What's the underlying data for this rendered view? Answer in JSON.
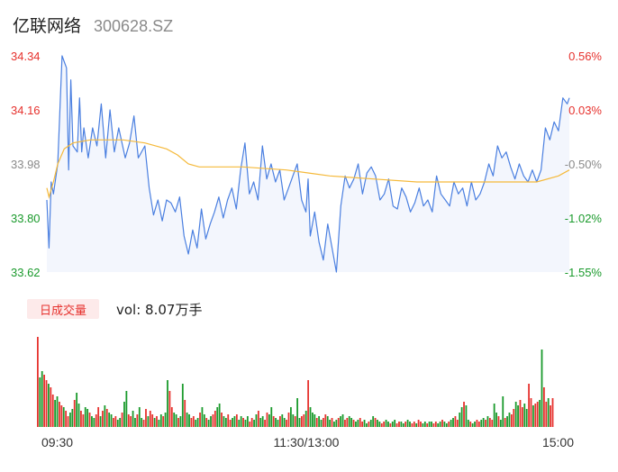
{
  "header": {
    "name": "亿联网络",
    "code": "300628.SZ"
  },
  "volume_panel": {
    "badge": "日成交量",
    "vol_label": "vol: 8.07万手"
  },
  "colors": {
    "up": "#e6322e",
    "down": "#1a9a2c",
    "neutral": "#8a8a8a",
    "price_line": "#4a7fe0",
    "price_fill": "#f3f6fd",
    "avg_line": "#f5b93a"
  },
  "chart_data": [
    {
      "type": "line",
      "y_ticks_left": [
        "34.34",
        "34.16",
        "33.98",
        "33.80",
        "33.62"
      ],
      "y_ticks_right": [
        "0.56%",
        "0.03%",
        "-0.50%",
        "-1.02%",
        "-1.55%"
      ],
      "ylim": [
        33.62,
        34.34
      ],
      "x_ticks": [
        "09:30",
        "11:30/13:00",
        "15:00"
      ],
      "total_minutes": 240,
      "price_keypoints": [
        [
          0,
          33.86
        ],
        [
          1,
          33.7
        ],
        [
          2,
          33.92
        ],
        [
          3,
          33.88
        ],
        [
          5,
          33.98
        ],
        [
          7,
          34.34
        ],
        [
          9,
          34.3
        ],
        [
          10,
          33.96
        ],
        [
          11,
          34.26
        ],
        [
          12,
          34.04
        ],
        [
          14,
          34.02
        ],
        [
          15,
          34.2
        ],
        [
          16,
          34.02
        ],
        [
          17,
          34.1
        ],
        [
          19,
          34.0
        ],
        [
          21,
          34.1
        ],
        [
          23,
          34.04
        ],
        [
          25,
          34.18
        ],
        [
          27,
          34.0
        ],
        [
          29,
          34.16
        ],
        [
          31,
          34.02
        ],
        [
          33,
          34.1
        ],
        [
          36,
          34.0
        ],
        [
          38,
          34.05
        ],
        [
          40,
          34.14
        ],
        [
          42,
          34.0
        ],
        [
          45,
          34.04
        ],
        [
          47,
          33.9
        ],
        [
          49,
          33.81
        ],
        [
          51,
          33.86
        ],
        [
          53,
          33.79
        ],
        [
          55,
          33.86
        ],
        [
          57,
          33.85
        ],
        [
          59,
          33.82
        ],
        [
          61,
          33.87
        ],
        [
          63,
          33.74
        ],
        [
          65,
          33.68
        ],
        [
          67,
          33.76
        ],
        [
          69,
          33.7
        ],
        [
          71,
          33.83
        ],
        [
          73,
          33.73
        ],
        [
          75,
          33.78
        ],
        [
          77,
          33.82
        ],
        [
          79,
          33.87
        ],
        [
          81,
          33.8
        ],
        [
          83,
          33.86
        ],
        [
          85,
          33.9
        ],
        [
          87,
          33.83
        ],
        [
          89,
          33.96
        ],
        [
          91,
          34.05
        ],
        [
          93,
          33.88
        ],
        [
          95,
          33.92
        ],
        [
          97,
          33.86
        ],
        [
          99,
          34.04
        ],
        [
          101,
          33.93
        ],
        [
          103,
          33.98
        ],
        [
          105,
          33.92
        ],
        [
          107,
          33.96
        ],
        [
          109,
          33.86
        ],
        [
          111,
          33.9
        ],
        [
          113,
          33.94
        ],
        [
          115,
          33.98
        ],
        [
          117,
          33.86
        ],
        [
          119,
          33.82
        ],
        [
          120,
          33.93
        ],
        [
          121,
          33.74
        ],
        [
          123,
          33.82
        ],
        [
          125,
          33.72
        ],
        [
          127,
          33.66
        ],
        [
          129,
          33.78
        ],
        [
          131,
          33.7
        ],
        [
          133,
          33.62
        ],
        [
          135,
          33.84
        ],
        [
          137,
          33.94
        ],
        [
          139,
          33.9
        ],
        [
          141,
          33.93
        ],
        [
          143,
          33.98
        ],
        [
          145,
          33.88
        ],
        [
          147,
          33.95
        ],
        [
          149,
          33.97
        ],
        [
          151,
          33.94
        ],
        [
          153,
          33.86
        ],
        [
          155,
          33.88
        ],
        [
          157,
          33.93
        ],
        [
          159,
          33.84
        ],
        [
          161,
          33.83
        ],
        [
          163,
          33.9
        ],
        [
          165,
          33.87
        ],
        [
          167,
          33.82
        ],
        [
          169,
          33.85
        ],
        [
          171,
          33.9
        ],
        [
          173,
          33.84
        ],
        [
          175,
          33.86
        ],
        [
          177,
          33.82
        ],
        [
          179,
          33.94
        ],
        [
          181,
          33.88
        ],
        [
          183,
          33.86
        ],
        [
          185,
          33.84
        ],
        [
          187,
          33.92
        ],
        [
          189,
          33.88
        ],
        [
          191,
          33.9
        ],
        [
          193,
          33.84
        ],
        [
          195,
          33.92
        ],
        [
          197,
          33.86
        ],
        [
          199,
          33.88
        ],
        [
          201,
          33.92
        ],
        [
          203,
          33.98
        ],
        [
          205,
          33.94
        ],
        [
          207,
          34.04
        ],
        [
          209,
          34.0
        ],
        [
          211,
          34.02
        ],
        [
          213,
          33.97
        ],
        [
          215,
          33.93
        ],
        [
          217,
          33.98
        ],
        [
          219,
          33.94
        ],
        [
          221,
          33.92
        ],
        [
          223,
          33.96
        ],
        [
          225,
          33.92
        ],
        [
          227,
          33.96
        ],
        [
          229,
          34.1
        ],
        [
          231,
          34.06
        ],
        [
          233,
          34.12
        ],
        [
          235,
          34.09
        ],
        [
          237,
          34.2
        ],
        [
          239,
          34.18
        ],
        [
          240,
          34.2
        ]
      ],
      "avg_keypoints": [
        [
          0,
          33.9
        ],
        [
          1,
          33.87
        ],
        [
          3,
          33.92
        ],
        [
          5,
          33.98
        ],
        [
          8,
          34.03
        ],
        [
          12,
          34.05
        ],
        [
          20,
          34.06
        ],
        [
          35,
          34.06
        ],
        [
          45,
          34.05
        ],
        [
          55,
          34.03
        ],
        [
          60,
          34.01
        ],
        [
          65,
          33.98
        ],
        [
          70,
          33.97
        ],
        [
          90,
          33.97
        ],
        [
          110,
          33.96
        ],
        [
          120,
          33.95
        ],
        [
          130,
          33.94
        ],
        [
          150,
          33.93
        ],
        [
          170,
          33.92
        ],
        [
          200,
          33.92
        ],
        [
          225,
          33.92
        ],
        [
          235,
          33.94
        ],
        [
          240,
          33.96
        ]
      ]
    },
    {
      "type": "bar",
      "label": "日成交量",
      "volumes": [
        100,
        55,
        62,
        58,
        52,
        48,
        44,
        36,
        30,
        34,
        28,
        24,
        22,
        18,
        12,
        16,
        20,
        30,
        38,
        26,
        18,
        14,
        22,
        20,
        16,
        12,
        10,
        14,
        22,
        12,
        18,
        24,
        20,
        16,
        14,
        10,
        12,
        8,
        10,
        16,
        28,
        40,
        14,
        12,
        18,
        10,
        14,
        22,
        10,
        8,
        20,
        12,
        18,
        14,
        10,
        12,
        8,
        14,
        12,
        16,
        52,
        40,
        22,
        16,
        14,
        10,
        12,
        48,
        30,
        16,
        14,
        10,
        12,
        8,
        10,
        16,
        22,
        14,
        10,
        8,
        12,
        14,
        18,
        22,
        26,
        16,
        12,
        10,
        14,
        8,
        10,
        12,
        14,
        8,
        12,
        10,
        8,
        12,
        6,
        10,
        8,
        14,
        18,
        10,
        12,
        8,
        16,
        14,
        22,
        12,
        10,
        8,
        12,
        14,
        10,
        8,
        16,
        22,
        14,
        12,
        32,
        10,
        12,
        14,
        18,
        52,
        22,
        16,
        14,
        10,
        12,
        8,
        10,
        14,
        12,
        8,
        10,
        6,
        8,
        10,
        12,
        14,
        8,
        10,
        12,
        10,
        8,
        6,
        8,
        10,
        6,
        8,
        4,
        6,
        8,
        12,
        10,
        8,
        6,
        4,
        6,
        8,
        6,
        4,
        6,
        8,
        4,
        6,
        6,
        4,
        6,
        8,
        6,
        4,
        6,
        4,
        8,
        6,
        4,
        6,
        4,
        6,
        6,
        4,
        6,
        4,
        6,
        8,
        6,
        4,
        6,
        8,
        10,
        12,
        8,
        16,
        22,
        28,
        24,
        8,
        6,
        4,
        6,
        8,
        6,
        8,
        10,
        8,
        12,
        10,
        8,
        26,
        16,
        12,
        8,
        34,
        10,
        12,
        16,
        14,
        20,
        28,
        24,
        30,
        22,
        26,
        20,
        48,
        32,
        24,
        26,
        28,
        30,
        86,
        44,
        28,
        32,
        24,
        32
      ],
      "directions": "udduuduudduuduuddudduuddudduudududduuddudduuddudduuduududdudduudduddudduudduddudduuddudduudduddudduuddudduudduddudduuddudduududddudduudduddudduuddudduudduddudduuddudduuddudduuduuddudduudduddudduudduddudduudduduudduddudduuddu"
    }
  ]
}
